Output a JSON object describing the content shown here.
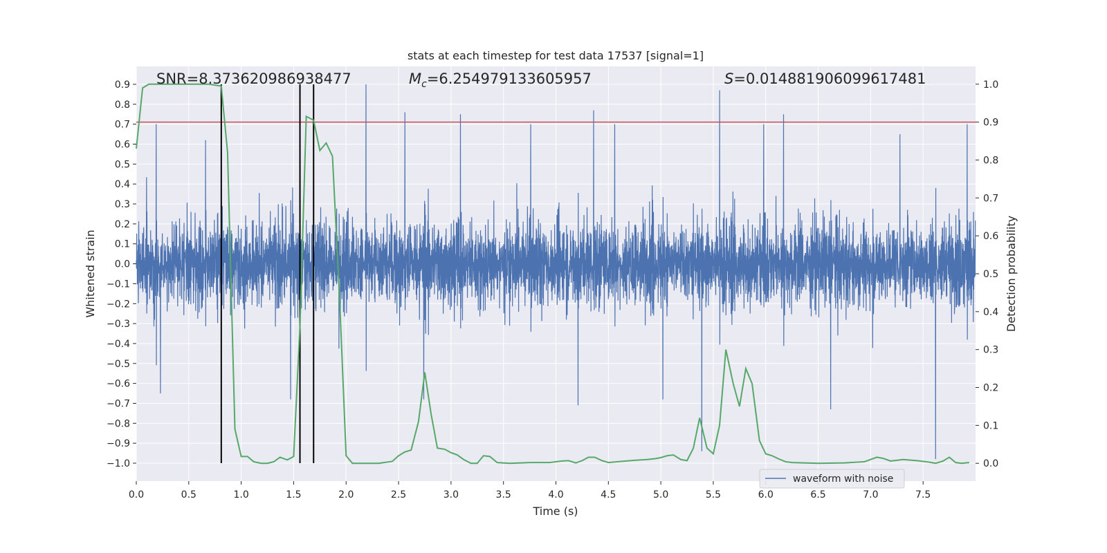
{
  "chart_data": {
    "type": "line",
    "title": "stats at each timestep for test data 17537 [signal=1]",
    "xlabel": "Time (s)",
    "ylabel": "Whitened strain",
    "ylabel_right": "Detection probability",
    "xlim": [
      0.0,
      8.0
    ],
    "ylim": [
      -1.09,
      0.99
    ],
    "ylim_right": [
      -0.047,
      1.047
    ],
    "x_ticks": [
      "0.0",
      "0.5",
      "1.0",
      "1.5",
      "2.0",
      "2.5",
      "3.0",
      "3.5",
      "4.0",
      "4.5",
      "5.0",
      "5.5",
      "6.0",
      "6.5",
      "7.0",
      "7.5"
    ],
    "x_tick_values": [
      0.0,
      0.5,
      1.0,
      1.5,
      2.0,
      2.5,
      3.0,
      3.5,
      4.0,
      4.5,
      5.0,
      5.5,
      6.0,
      6.5,
      7.0,
      7.5
    ],
    "y_ticks": [
      "0.9",
      "0.8",
      "0.7",
      "0.6",
      "0.5",
      "0.4",
      "0.3",
      "0.2",
      "0.1",
      "0.0",
      "−0.1",
      "−0.2",
      "−0.3",
      "−0.4",
      "−0.5",
      "−0.6",
      "−0.7",
      "−0.8",
      "−0.9",
      "−1.0"
    ],
    "y_tick_values": [
      0.9,
      0.8,
      0.7,
      0.6,
      0.5,
      0.4,
      0.3,
      0.2,
      0.1,
      0.0,
      -0.1,
      -0.2,
      -0.3,
      -0.4,
      -0.5,
      -0.6,
      -0.7,
      -0.8,
      -0.9,
      -1.0
    ],
    "y_right_ticks": [
      "1.0",
      "0.9",
      "0.8",
      "0.7",
      "0.6",
      "0.5",
      "0.4",
      "0.3",
      "0.2",
      "0.1",
      "0.0"
    ],
    "y_right_tick_values": [
      1.0,
      0.9,
      0.8,
      0.7,
      0.6,
      0.5,
      0.4,
      0.3,
      0.2,
      0.1,
      0.0
    ],
    "annotations": [
      {
        "text": "SNR=8.373620986938477",
        "x": 0.2
      },
      {
        "text": "M_c=6.254979133605957",
        "math_symbol": "M",
        "subscript": "c",
        "value": "=6.254979133605957",
        "x": 2.6
      },
      {
        "text": "S=0.014881906099617481",
        "math_symbol": "S",
        "value": "=0.014881906099617481",
        "x": 5.6
      }
    ],
    "threshold": {
      "value": 0.9,
      "axis": "right",
      "color": "#c44e52"
    },
    "vertical_lines": [
      0.81,
      1.56,
      1.69
    ],
    "legend": {
      "position": "lower-right",
      "entries": [
        "waveform with noise"
      ]
    },
    "grid": true,
    "series": [
      {
        "name": "waveform with noise",
        "axis": "left",
        "color": "#4c72b0",
        "sample_rate": 512,
        "typical_amplitude": 0.32,
        "spikes": [
          {
            "x": 0.19,
            "y": 0.7
          },
          {
            "x": 0.23,
            "y": -0.65
          },
          {
            "x": 0.66,
            "y": 0.62
          },
          {
            "x": 1.47,
            "y": -0.68
          },
          {
            "x": 2.19,
            "y": 0.9
          },
          {
            "x": 2.56,
            "y": 0.76
          },
          {
            "x": 2.74,
            "y": -0.68
          },
          {
            "x": 3.09,
            "y": 0.75
          },
          {
            "x": 3.76,
            "y": 0.7
          },
          {
            "x": 4.21,
            "y": -0.71
          },
          {
            "x": 4.36,
            "y": 0.77
          },
          {
            "x": 4.56,
            "y": 0.7
          },
          {
            "x": 5.02,
            "y": -0.68
          },
          {
            "x": 5.39,
            "y": -0.94
          },
          {
            "x": 5.56,
            "y": 0.87
          },
          {
            "x": 5.98,
            "y": 0.7
          },
          {
            "x": 6.17,
            "y": 0.75
          },
          {
            "x": 6.62,
            "y": -0.73
          },
          {
            "x": 7.28,
            "y": 0.65
          },
          {
            "x": 7.62,
            "y": -0.98
          },
          {
            "x": 7.92,
            "y": 0.7
          }
        ]
      },
      {
        "name": "detection probability",
        "axis": "right",
        "color": "#55a868",
        "points": [
          [
            0.0,
            0.83
          ],
          [
            0.06,
            0.99
          ],
          [
            0.12,
            1.0
          ],
          [
            0.25,
            1.0
          ],
          [
            0.5,
            1.0
          ],
          [
            0.69,
            1.0
          ],
          [
            0.81,
            0.995
          ],
          [
            0.87,
            0.82
          ],
          [
            0.94,
            0.09
          ],
          [
            1.0,
            0.018
          ],
          [
            1.06,
            0.018
          ],
          [
            1.12,
            0.004
          ],
          [
            1.19,
            0.0
          ],
          [
            1.25,
            0.0
          ],
          [
            1.31,
            0.004
          ],
          [
            1.37,
            0.016
          ],
          [
            1.44,
            0.009
          ],
          [
            1.5,
            0.018
          ],
          [
            1.56,
            0.36
          ],
          [
            1.62,
            0.915
          ],
          [
            1.69,
            0.905
          ],
          [
            1.75,
            0.825
          ],
          [
            1.81,
            0.845
          ],
          [
            1.87,
            0.81
          ],
          [
            1.94,
            0.42
          ],
          [
            2.0,
            0.02
          ],
          [
            2.06,
            0.0
          ],
          [
            2.12,
            0.0
          ],
          [
            2.31,
            0.0
          ],
          [
            2.44,
            0.005
          ],
          [
            2.5,
            0.02
          ],
          [
            2.56,
            0.03
          ],
          [
            2.62,
            0.035
          ],
          [
            2.69,
            0.11
          ],
          [
            2.75,
            0.24
          ],
          [
            2.81,
            0.13
          ],
          [
            2.87,
            0.04
          ],
          [
            2.94,
            0.037
          ],
          [
            3.0,
            0.028
          ],
          [
            3.06,
            0.022
          ],
          [
            3.12,
            0.01
          ],
          [
            3.19,
            0.0
          ],
          [
            3.25,
            0.0
          ],
          [
            3.31,
            0.02
          ],
          [
            3.37,
            0.018
          ],
          [
            3.44,
            0.002
          ],
          [
            3.56,
            0.0
          ],
          [
            3.75,
            0.002
          ],
          [
            3.94,
            0.002
          ],
          [
            4.06,
            0.006
          ],
          [
            4.12,
            0.007
          ],
          [
            4.19,
            0.001
          ],
          [
            4.25,
            0.007
          ],
          [
            4.31,
            0.016
          ],
          [
            4.37,
            0.016
          ],
          [
            4.44,
            0.007
          ],
          [
            4.5,
            0.002
          ],
          [
            4.75,
            0.008
          ],
          [
            4.87,
            0.01
          ],
          [
            4.94,
            0.012
          ],
          [
            5.0,
            0.015
          ],
          [
            5.06,
            0.02
          ],
          [
            5.12,
            0.022
          ],
          [
            5.19,
            0.01
          ],
          [
            5.25,
            0.007
          ],
          [
            5.31,
            0.04
          ],
          [
            5.37,
            0.12
          ],
          [
            5.44,
            0.04
          ],
          [
            5.5,
            0.025
          ],
          [
            5.56,
            0.1
          ],
          [
            5.62,
            0.3
          ],
          [
            5.69,
            0.21
          ],
          [
            5.75,
            0.15
          ],
          [
            5.81,
            0.25
          ],
          [
            5.87,
            0.21
          ],
          [
            5.94,
            0.06
          ],
          [
            6.0,
            0.025
          ],
          [
            6.06,
            0.02
          ],
          [
            6.12,
            0.012
          ],
          [
            6.19,
            0.004
          ],
          [
            6.25,
            0.002
          ],
          [
            6.5,
            0.0
          ],
          [
            6.75,
            0.001
          ],
          [
            6.94,
            0.004
          ],
          [
            7.0,
            0.01
          ],
          [
            7.06,
            0.016
          ],
          [
            7.12,
            0.013
          ],
          [
            7.19,
            0.006
          ],
          [
            7.25,
            0.008
          ],
          [
            7.31,
            0.01
          ],
          [
            7.44,
            0.007
          ],
          [
            7.56,
            0.003
          ],
          [
            7.62,
            0.0
          ],
          [
            7.69,
            0.006
          ],
          [
            7.75,
            0.016
          ],
          [
            7.81,
            0.002
          ],
          [
            7.87,
            0.0
          ],
          [
            7.94,
            0.002
          ]
        ]
      }
    ]
  }
}
